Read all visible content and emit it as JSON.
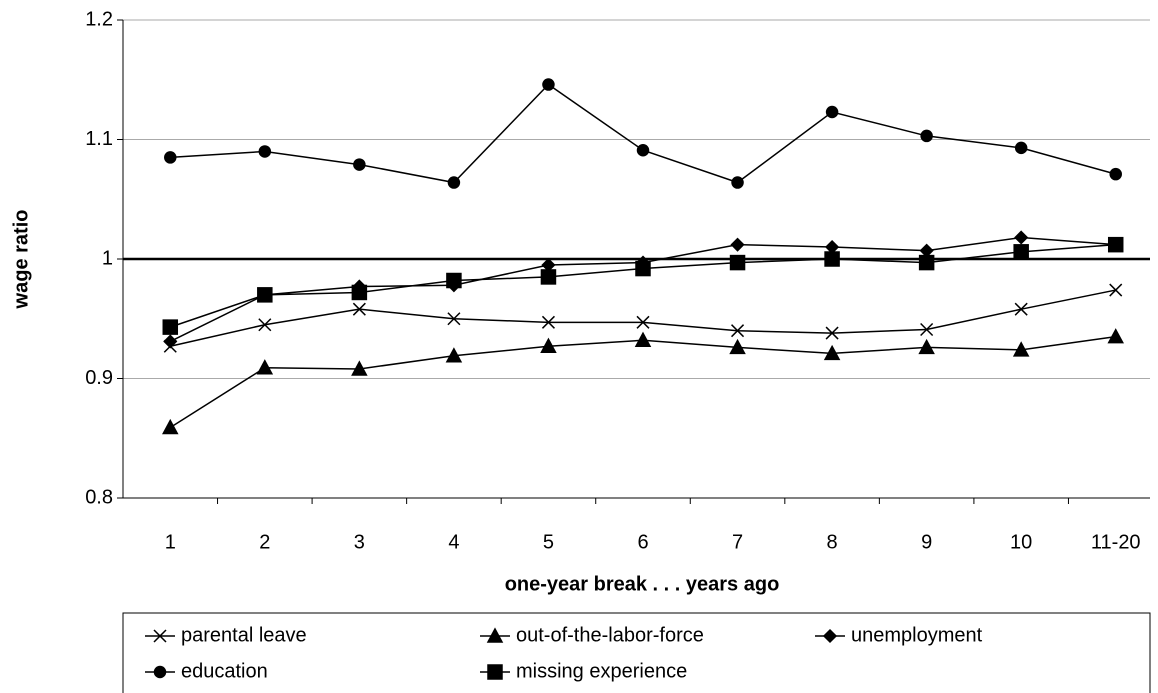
{
  "chart_data": {
    "type": "line",
    "y_label": "wage ratio",
    "x_label": "one-year break . . . years ago",
    "categories": [
      "1",
      "2",
      "3",
      "4",
      "5",
      "6",
      "7",
      "8",
      "9",
      "10",
      "11-20"
    ],
    "ylim": [
      0.8,
      1.2
    ],
    "yticks": [
      0.8,
      0.9,
      1,
      1.1,
      1.2
    ],
    "grid": true,
    "reference_line": 1,
    "legend": "bottom",
    "series": [
      {
        "name": "parental leave",
        "color": "#000000",
        "marker": "x",
        "values": [
          0.927,
          0.945,
          0.958,
          0.95,
          0.947,
          0.947,
          0.94,
          0.938,
          0.941,
          0.958,
          0.974
        ]
      },
      {
        "name": "out-of-the-labor-force",
        "color": "#000000",
        "marker": "triangle",
        "values": [
          0.859,
          0.909,
          0.908,
          0.919,
          0.927,
          0.932,
          0.926,
          0.921,
          0.926,
          0.924,
          0.935
        ]
      },
      {
        "name": "unemployment",
        "color": "#000000",
        "marker": "diamond",
        "values": [
          0.931,
          0.97,
          0.977,
          0.978,
          0.995,
          0.997,
          1.012,
          1.01,
          1.007,
          1.018,
          1.012
        ]
      },
      {
        "name": "education",
        "color": "#000000",
        "marker": "circle",
        "values": [
          1.085,
          1.09,
          1.079,
          1.064,
          1.146,
          1.091,
          1.064,
          1.123,
          1.103,
          1.093,
          1.071
        ]
      },
      {
        "name": "missing experience",
        "color": "#000000",
        "marker": "square",
        "values": [
          0.943,
          0.97,
          0.972,
          0.982,
          0.985,
          0.992,
          0.997,
          1.0,
          0.997,
          1.006,
          1.012
        ]
      }
    ]
  }
}
